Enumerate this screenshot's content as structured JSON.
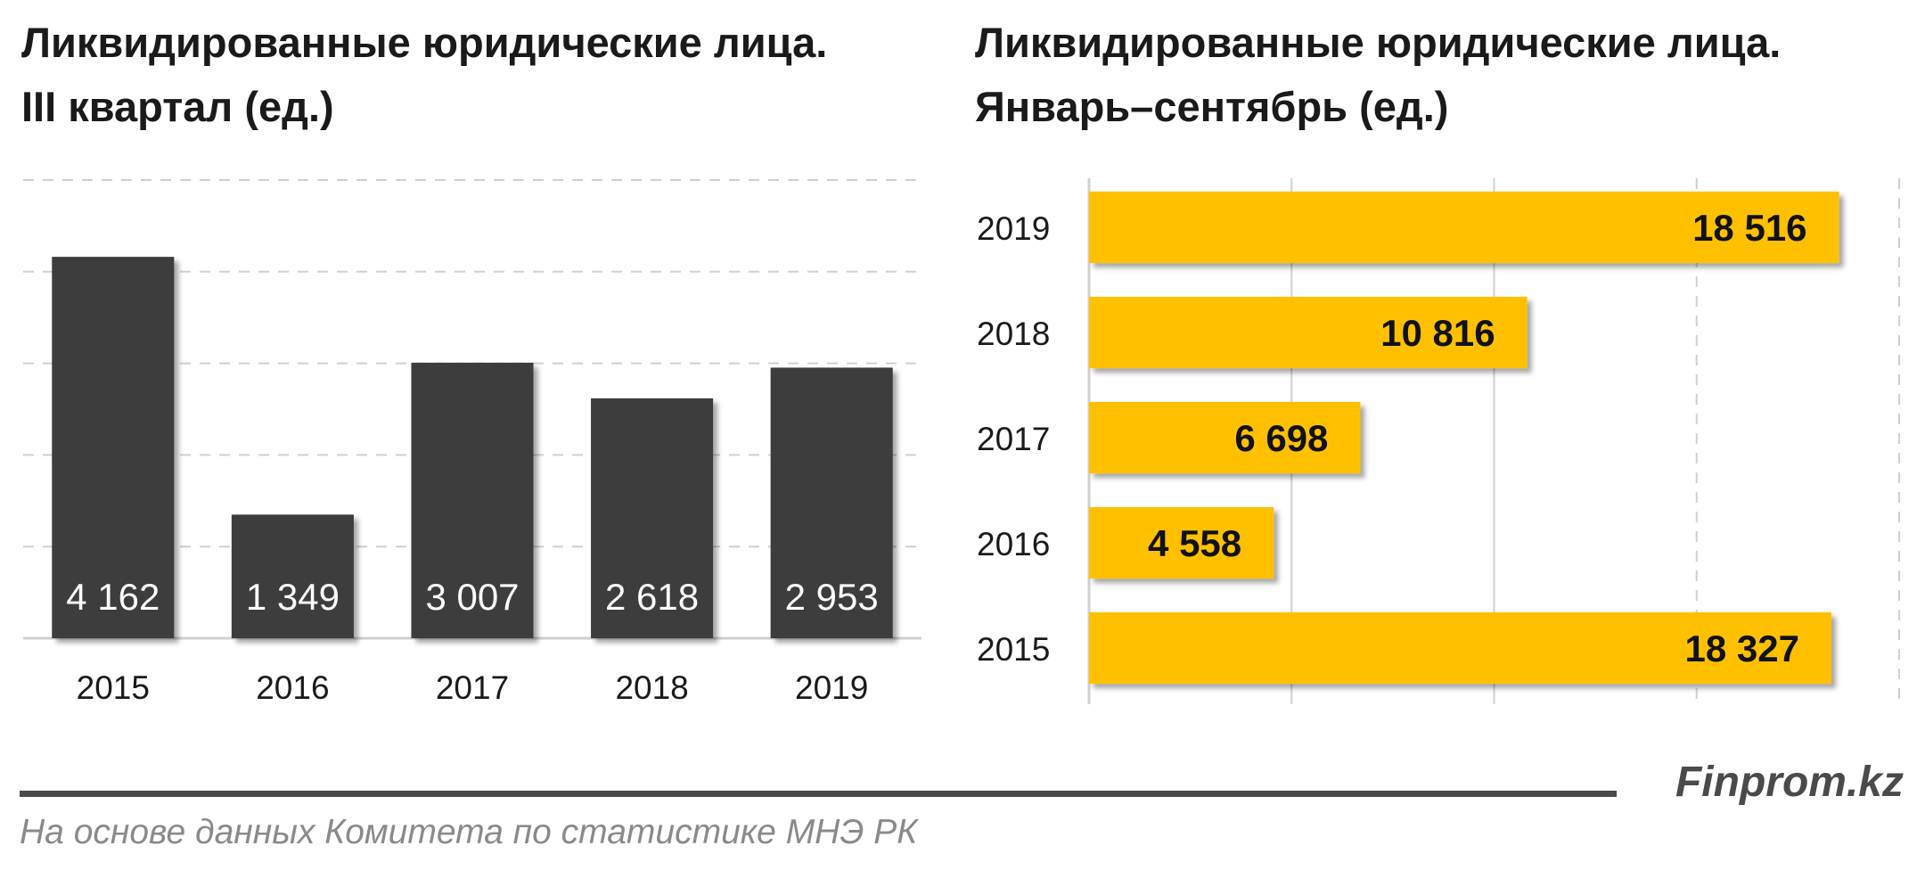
{
  "colors": {
    "bar_dark": "#3d3d3d",
    "bar_gold": "#ffc000",
    "grid": "#d0d0d0",
    "label_light": "#ffffff",
    "label_dark": "#111111",
    "text": "#1a1a1a",
    "footer": "#4a4a4a",
    "source": "#8a8a8a"
  },
  "left": {
    "title_line1": "Ликвидированные юридические лица.",
    "title_line2": "III квартал (ед.)"
  },
  "right": {
    "title_line1": "Ликвидированные юридические лица.",
    "title_line2": "Январь–сентябрь (ед.)"
  },
  "chart_data": [
    {
      "type": "bar",
      "orientation": "vertical",
      "title": "Ликвидированные юридические лица. III квартал (ед.)",
      "categories": [
        "2015",
        "2016",
        "2017",
        "2018",
        "2019"
      ],
      "values": [
        4162,
        1349,
        3007,
        2618,
        2953
      ],
      "value_labels": [
        "4 162",
        "1 349",
        "3 007",
        "2 618",
        "2 953"
      ],
      "ylim": [
        0,
        5000
      ],
      "grid": true,
      "grid_style": "dashed",
      "data_label_position": "inside-bottom"
    },
    {
      "type": "bar",
      "orientation": "horizontal",
      "title": "Ликвидированные юридические лица. Январь–сентябрь (ед.)",
      "categories": [
        "2019",
        "2018",
        "2017",
        "2016",
        "2015"
      ],
      "values": [
        18516,
        10816,
        6698,
        4558,
        18327
      ],
      "value_labels": [
        "18 516",
        "10 816",
        "6 698",
        "4 558",
        "18 327"
      ],
      "xlim": [
        0,
        20000
      ],
      "grid": true,
      "grid_style": "dashed",
      "data_label_position": "inside-end"
    }
  ],
  "footer": {
    "brand": "Finprom.kz",
    "source": "На основе данных  Комитета по статистике МНЭ РК"
  }
}
